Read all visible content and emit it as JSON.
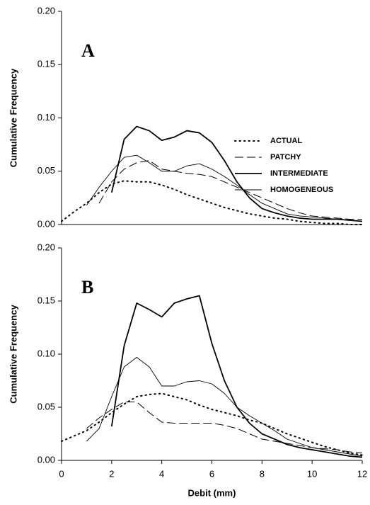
{
  "chart_data": [
    {
      "type": "line",
      "annotation": "A",
      "ylabel": "Cumulative Frequency",
      "x": [
        0,
        0.5,
        1,
        1.5,
        2,
        2.5,
        3,
        3.5,
        4,
        4.5,
        5,
        5.5,
        6,
        6.5,
        7,
        7.5,
        8,
        8.5,
        9,
        9.5,
        10,
        10.5,
        11,
        11.5,
        12
      ],
      "xlim": [
        0,
        12
      ],
      "ylim": [
        0,
        0.2
      ],
      "yticks": [
        {
          "value": 0,
          "label": "0.00"
        },
        {
          "value": 0.05,
          "label": "0.05"
        },
        {
          "value": 0.1,
          "label": "0.10"
        },
        {
          "value": 0.15,
          "label": "0.15"
        },
        {
          "value": 0.2,
          "label": "0.20"
        }
      ],
      "legend": "right",
      "series": [
        {
          "name": "ACTUAL",
          "color": "#000000",
          "dash": "dotted",
          "values": [
            0.003,
            0.012,
            0.02,
            0.03,
            0.038,
            0.041,
            0.04,
            0.04,
            0.037,
            0.033,
            0.028,
            0.024,
            0.02,
            0.016,
            0.013,
            0.01,
            0.008,
            0.006,
            0.005,
            0.003,
            0.002,
            0.001,
            0.001,
            0,
            0
          ]
        },
        {
          "name": "PATCHY",
          "color": "#000000",
          "dash": "dashed",
          "values": [
            null,
            null,
            null,
            0.02,
            0.04,
            0.052,
            0.058,
            0.06,
            0.052,
            0.05,
            0.048,
            0.047,
            0.045,
            0.04,
            0.035,
            0.03,
            0.025,
            0.02,
            0.015,
            0.011,
            0.008,
            0.007,
            0.006,
            0.005,
            0.005
          ]
        },
        {
          "name": "INTERMEDIATE",
          "color": "#000000",
          "dash": "thick",
          "values": [
            null,
            null,
            null,
            null,
            0.03,
            0.08,
            0.092,
            0.088,
            0.079,
            0.082,
            0.088,
            0.086,
            0.077,
            0.06,
            0.04,
            0.025,
            0.015,
            0.011,
            0.008,
            0.006,
            0.005,
            0.005,
            0.005,
            0.004,
            0.003
          ]
        },
        {
          "name": "HOMOGENEOUS",
          "color": "#000000",
          "dash": "solid",
          "values": [
            null,
            null,
            0.018,
            0.035,
            0.05,
            0.063,
            0.065,
            0.058,
            0.05,
            0.05,
            0.055,
            0.057,
            0.052,
            0.045,
            0.037,
            0.028,
            0.02,
            0.015,
            0.01,
            0.008,
            0.007,
            0.006,
            0.005,
            0.004,
            0.003
          ]
        }
      ]
    },
    {
      "type": "line",
      "annotation": "B",
      "ylabel": "Cumulative Frequency",
      "xlabel": "Debit (mm)",
      "x": [
        0,
        0.5,
        1,
        1.5,
        2,
        2.5,
        3,
        3.5,
        4,
        4.5,
        5,
        5.5,
        6,
        6.5,
        7,
        7.5,
        8,
        8.5,
        9,
        9.5,
        10,
        10.5,
        11,
        11.5,
        12
      ],
      "xlim": [
        0,
        12
      ],
      "xticks": [
        0,
        2,
        4,
        6,
        8,
        10,
        12
      ],
      "ylim": [
        0,
        0.2
      ],
      "yticks": [
        {
          "value": 0,
          "label": "0.00"
        },
        {
          "value": 0.05,
          "label": "0.05"
        },
        {
          "value": 0.1,
          "label": "0.10"
        },
        {
          "value": 0.15,
          "label": "0.15"
        },
        {
          "value": 0.2,
          "label": "0.20"
        }
      ],
      "series": [
        {
          "color": "#000000",
          "dash": "dotted",
          "values": [
            0.018,
            0.023,
            0.028,
            0.036,
            0.045,
            0.053,
            0.06,
            0.062,
            0.063,
            0.06,
            0.057,
            0.052,
            0.048,
            0.045,
            0.042,
            0.038,
            0.035,
            0.03,
            0.025,
            0.021,
            0.017,
            0.013,
            0.01,
            0.007,
            0.005
          ]
        },
        {
          "color": "#000000",
          "dash": "dashed",
          "values": [
            null,
            null,
            0.03,
            0.04,
            0.048,
            0.055,
            0.055,
            0.045,
            0.036,
            0.035,
            0.035,
            0.035,
            0.035,
            0.033,
            0.03,
            0.025,
            0.02,
            0.018,
            0.016,
            0.014,
            0.012,
            0.011,
            0.01,
            0.008,
            0.007
          ]
        },
        {
          "color": "#000000",
          "dash": "thick",
          "values": [
            null,
            null,
            null,
            null,
            0.032,
            0.108,
            0.148,
            0.142,
            0.135,
            0.148,
            0.152,
            0.155,
            0.11,
            0.075,
            0.05,
            0.035,
            0.025,
            0.02,
            0.015,
            0.012,
            0.01,
            0.008,
            0.006,
            0.004,
            0.003
          ]
        },
        {
          "color": "#000000",
          "dash": "solid",
          "values": [
            null,
            null,
            0.018,
            0.03,
            0.06,
            0.088,
            0.097,
            0.088,
            0.07,
            0.07,
            0.074,
            0.075,
            0.072,
            0.063,
            0.05,
            0.042,
            0.035,
            0.028,
            0.02,
            0.016,
            0.012,
            0.01,
            0.008,
            0.006,
            0.004
          ]
        }
      ]
    }
  ]
}
